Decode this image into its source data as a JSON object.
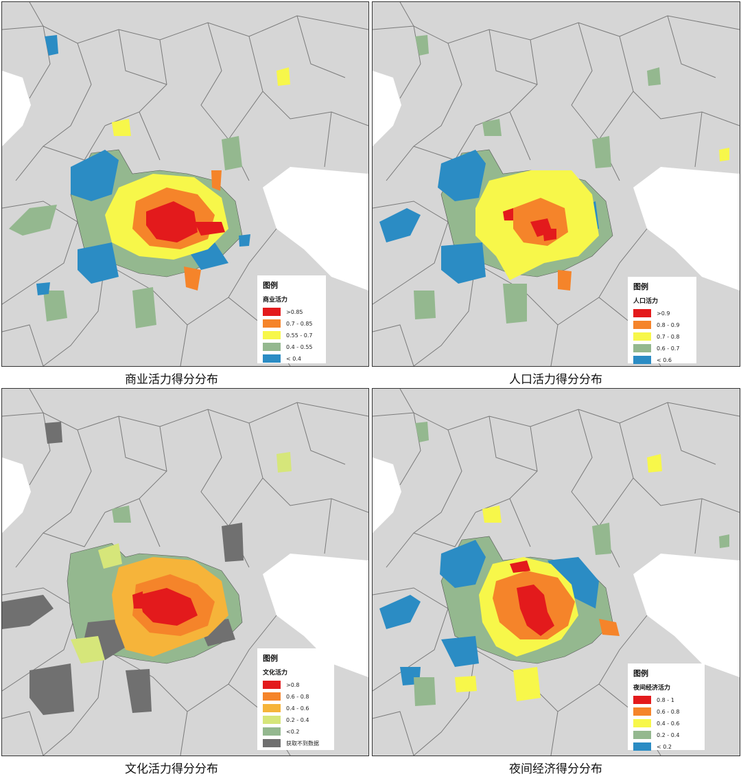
{
  "colors": {
    "background": "#d6d6d6",
    "border": "#7a7a7a",
    "red": "#e31a1c",
    "orange": "#f5842a",
    "light_orange": "#f6b43a",
    "yellow": "#f7f74a",
    "lime": "#d6e67a",
    "green": "#94b88f",
    "blue": "#2b8cc4",
    "gray": "#707070"
  },
  "maps": [
    {
      "caption": "商业活力得分分布",
      "legend_title": "图例",
      "legend_subtitle": "商业活力",
      "legend_items": [
        {
          "label": ">0.85",
          "color": "#e31a1c"
        },
        {
          "label": "0.7 - 0.85",
          "color": "#f5842a"
        },
        {
          "label": "0.55 - 0.7",
          "color": "#f7f74a"
        },
        {
          "label": "0.4 - 0.55",
          "color": "#94b88f"
        },
        {
          "label": "< 0.4",
          "color": "#2b8cc4"
        }
      ]
    },
    {
      "caption": "人口活力得分分布",
      "legend_title": "图例",
      "legend_subtitle": "人口活力",
      "legend_items": [
        {
          "label": ">0.9",
          "color": "#e31a1c"
        },
        {
          "label": "0.8 - 0.9",
          "color": "#f5842a"
        },
        {
          "label": "0.7 - 0.8",
          "color": "#f7f74a"
        },
        {
          "label": "0.6 - 0.7",
          "color": "#94b88f"
        },
        {
          "label": "< 0.6",
          "color": "#2b8cc4"
        }
      ]
    },
    {
      "caption": "文化活力得分分布",
      "legend_title": "图例",
      "legend_subtitle": "文化活力",
      "legend_items": [
        {
          "label": ">0.8",
          "color": "#e31a1c"
        },
        {
          "label": "0.6 - 0.8",
          "color": "#f5842a"
        },
        {
          "label": "0.4 - 0.6",
          "color": "#f6b43a"
        },
        {
          "label": "0.2 - 0.4",
          "color": "#d6e67a"
        },
        {
          "label": "<0.2",
          "color": "#94b88f"
        },
        {
          "label": "获取不到数据",
          "color": "#707070"
        }
      ]
    },
    {
      "caption": "夜间经济得分分布",
      "legend_title": "图例",
      "legend_subtitle": "夜间经济活力",
      "legend_items": [
        {
          "label": "0.8 - 1",
          "color": "#e31a1c"
        },
        {
          "label": "0.6 - 0.8",
          "color": "#f5842a"
        },
        {
          "label": "0.4 - 0.6",
          "color": "#f7f74a"
        },
        {
          "label": "0.2 - 0.4",
          "color": "#94b88f"
        },
        {
          "label": "< 0.2",
          "color": "#2b8cc4"
        }
      ]
    }
  ]
}
